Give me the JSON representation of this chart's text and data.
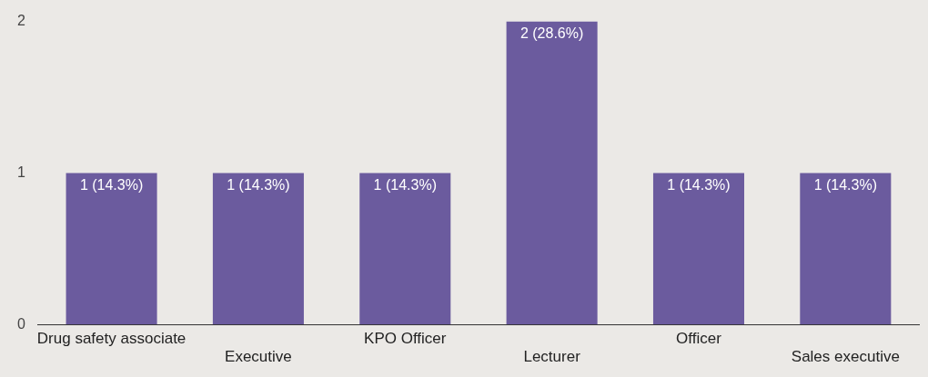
{
  "chart_data": {
    "type": "bar",
    "categories": [
      "Drug safety associate",
      "Executive",
      "KPO Officer",
      "Lecturer",
      "Officer",
      "Sales executive"
    ],
    "values": [
      1,
      1,
      1,
      2,
      1,
      1
    ],
    "value_labels": [
      "1 (14.3%)",
      "1 (14.3%)",
      "1 (14.3%)",
      "2 (28.6%)",
      "1 (14.3%)",
      "1 (14.3%)"
    ],
    "color": "#6b5b9e",
    "ylim": [
      0,
      2
    ],
    "yticks": [
      0,
      1,
      2
    ],
    "grid": false,
    "legend": false
  }
}
